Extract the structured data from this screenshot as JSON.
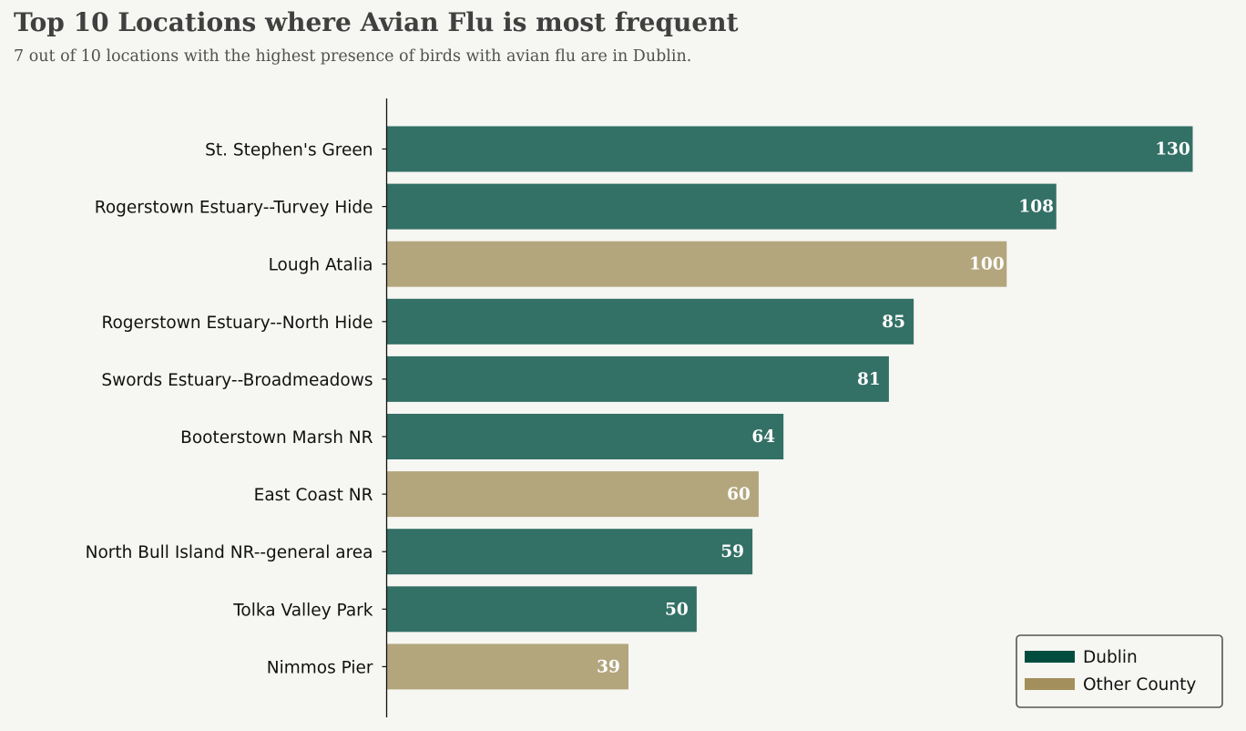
{
  "chart_data": {
    "type": "bar",
    "orientation": "horizontal",
    "title": "Top 10 Locations where Avian Flu is most frequent",
    "subtitle": "7 out of 10 locations with the highest presence of birds with avian flu are in Dublin.",
    "categories": [
      "St. Stephen's Green",
      "Rogerstown Estuary--Turvey Hide",
      "Lough Atalia",
      "Rogerstown Estuary--North Hide",
      "Swords Estuary--Broadmeadows",
      "Booterstown Marsh NR",
      "East Coast NR",
      "North Bull Island NR--general area",
      "Tolka Valley Park",
      "Nimmos Pier"
    ],
    "values": [
      130,
      108,
      100,
      85,
      81,
      64,
      60,
      59,
      50,
      39
    ],
    "groups": [
      "Dublin",
      "Dublin",
      "Other County",
      "Dublin",
      "Dublin",
      "Dublin",
      "Other County",
      "Dublin",
      "Dublin",
      "Other County"
    ],
    "xlim": [
      0,
      130
    ],
    "grid": false,
    "legend": {
      "placement": "bottom-right",
      "entries": [
        {
          "name": "Dublin",
          "color": "#004d40",
          "bar_color": "#337066"
        },
        {
          "name": "Other County",
          "color": "#a38f5c",
          "bar_color": "#b3a67d"
        }
      ]
    }
  }
}
